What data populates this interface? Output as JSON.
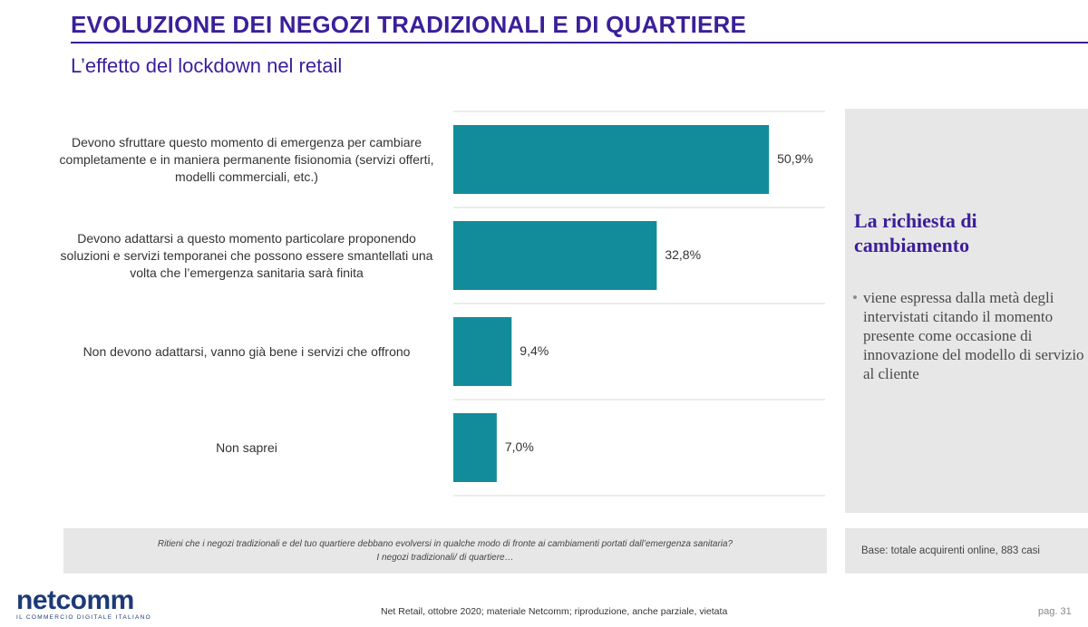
{
  "header": {
    "title": "EVOLUZIONE DEI NEGOZI TRADIZIONALI E DI QUARTIERE",
    "subtitle": "L’effetto del lockdown nel retail"
  },
  "chart_data": {
    "type": "bar",
    "orientation": "horizontal",
    "categories": [
      "Devono sfruttare questo momento di emergenza per cambiare completamente e in maniera permanente fisionomia (servizi offerti, modelli commerciali, etc.)",
      "Devono adattarsi a questo momento particolare proponendo soluzioni e servizi temporanei che possono essere smantellati una volta che l’emergenza sanitaria sarà finita",
      "Non devono adattarsi, vanno già bene i servizi che offrono",
      "Non saprei"
    ],
    "values": [
      50.9,
      32.8,
      9.4,
      7.0
    ],
    "value_labels": [
      "50,9%",
      "32,8%",
      "9,4%",
      "7,0%"
    ],
    "xlim": [
      0,
      60
    ],
    "unit": "%",
    "bar_color": "#128c9a",
    "grid": "horizontal separators",
    "legend": "none"
  },
  "side_panel": {
    "title": "La richiesta di cambiamento",
    "bullet": "viene espressa dalla metà degli intervistati citando il momento presente come occasione di innovazione del modello di servizio al cliente"
  },
  "question": {
    "line1": "Ritieni che i negozi tradizionali e del tuo quartiere debbano evolversi in qualche modo di fronte ai cambiamenti portati dall’emergenza sanitaria?",
    "line2": "I negozi tradizionali/ di quartiere…"
  },
  "base_note": "Base: totale acquirenti online, 883 casi",
  "footer": {
    "logo_text": "netcomm",
    "logo_tagline": "IL COMMERCIO DIGITALE ITALIANO",
    "source": "Net Retail, ottobre 2020; materiale Netcomm; riproduzione, anche parziale, vietata",
    "page": "pag. 31"
  },
  "colors": {
    "title": "#3a1f9a",
    "bar": "#128c9a",
    "panel_bg": "#e8e7e7",
    "logo": "#1d3a78"
  }
}
